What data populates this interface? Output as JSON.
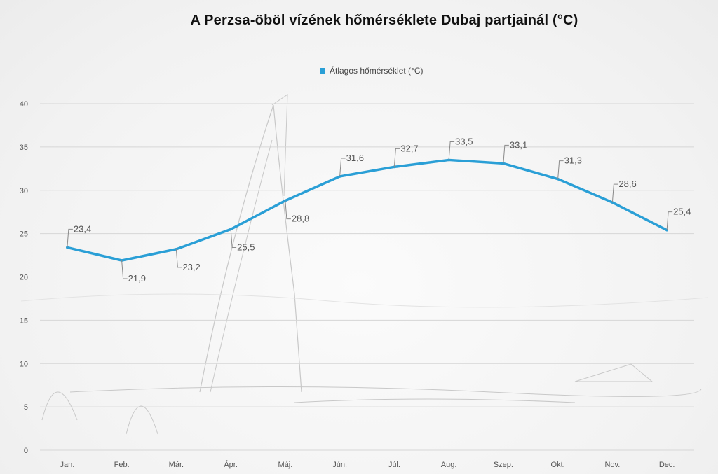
{
  "title": "A Perzsa-öböl vízének hőmérséklete Dubaj partjainál (°C)",
  "colors": {
    "series": "#2a9fd6",
    "grid": "#d6d6d6",
    "leader": "#8a8a8a",
    "sketch": "#c8c8c8"
  },
  "chart_data": {
    "type": "line",
    "title": "A Perzsa-öböl vízének hőmérséklete Dubaj partjainál (°C)",
    "xlabel": "",
    "ylabel": "",
    "ylim": [
      0,
      40
    ],
    "y_ticks": [
      "0",
      "5",
      "10",
      "15",
      "20",
      "25",
      "30",
      "35",
      "40"
    ],
    "grid": true,
    "legend_position": "top",
    "categories": [
      "Jan.",
      "Feb.",
      "Már.",
      "Ápr.",
      "Máj.",
      "Jún.",
      "Júl.",
      "Aug.",
      "Szep.",
      "Okt.",
      "Nov.",
      "Dec."
    ],
    "series": [
      {
        "name": "Átlagos hőmérséklet (°C)",
        "values": [
          23.4,
          21.9,
          23.2,
          25.5,
          28.8,
          31.6,
          32.7,
          33.5,
          33.1,
          31.3,
          28.6,
          25.4
        ],
        "labels": [
          "23,4",
          "21,9",
          "23,2",
          "25,5",
          "28,8",
          "31,6",
          "32,7",
          "33,5",
          "33,1",
          "31,3",
          "28,6",
          "25,4"
        ]
      }
    ]
  }
}
